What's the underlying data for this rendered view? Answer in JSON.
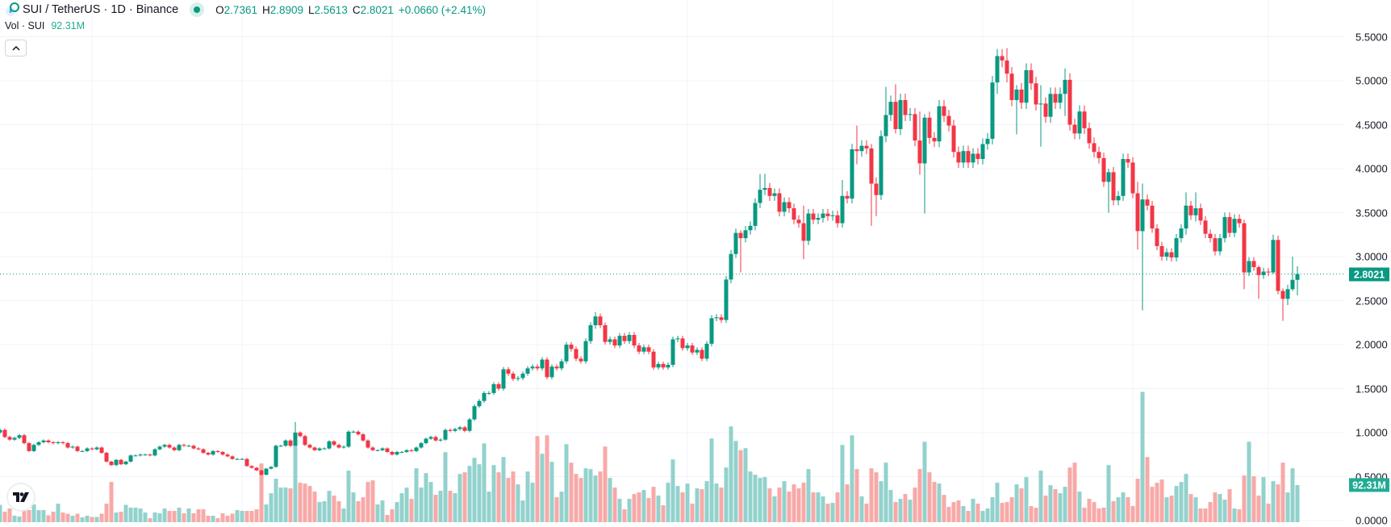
{
  "header": {
    "symbol_title": "SUI / TetherUS · 1D · Binance",
    "market_status": "open",
    "ohlc": [
      {
        "key": "O",
        "value": "2.7361"
      },
      {
        "key": "H",
        "value": "2.8909"
      },
      {
        "key": "L",
        "value": "2.5613"
      },
      {
        "key": "C",
        "value": "2.8021"
      }
    ],
    "change": "+0.0660 (+2.41%)",
    "volume_label": "Vol · SUI",
    "volume_value": "92.31M"
  },
  "icons": {
    "logo": "sui-logo-icon",
    "collapse": "chevron-up-icon",
    "watermark": "tradingview-logo"
  },
  "colors": {
    "up": "#089981",
    "down": "#F23645",
    "volume_up": "#92d2cc",
    "volume_down": "#f7a9a7",
    "grid": "#f0f3fa"
  },
  "chart_data": {
    "type": "candlestick",
    "interval": "1D",
    "grid": true,
    "price_axis": {
      "position": "right",
      "ticks": [
        "5.5000",
        "5.0000",
        "4.5000",
        "4.0000",
        "3.5000",
        "3.0000",
        "2.5000",
        "2.0000",
        "1.5000",
        "1.0000",
        "0.5000",
        "0.0000"
      ],
      "range": [
        0,
        5.5
      ]
    },
    "last_price": "2.8021",
    "last_volume": "92.31M",
    "first_open": 1.0,
    "close": [
      1.03,
      0.95,
      0.92,
      0.94,
      0.97,
      0.88,
      0.79,
      0.86,
      0.89,
      0.91,
      0.89,
      0.88,
      0.89,
      0.88,
      0.83,
      0.84,
      0.79,
      0.79,
      0.82,
      0.81,
      0.83,
      0.77,
      0.67,
      0.63,
      0.69,
      0.64,
      0.67,
      0.74,
      0.74,
      0.75,
      0.75,
      0.74,
      0.81,
      0.84,
      0.86,
      0.83,
      0.8,
      0.86,
      0.85,
      0.85,
      0.82,
      0.81,
      0.77,
      0.75,
      0.79,
      0.78,
      0.75,
      0.73,
      0.7,
      0.7,
      0.7,
      0.62,
      0.6,
      0.57,
      0.52,
      0.59,
      0.61,
      0.85,
      0.85,
      0.91,
      0.85,
      1.0,
      0.96,
      0.86,
      0.83,
      0.8,
      0.82,
      0.82,
      0.9,
      0.86,
      0.83,
      0.84,
      1.01,
      1.01,
      0.98,
      0.91,
      0.83,
      0.8,
      0.8,
      0.82,
      0.78,
      0.75,
      0.78,
      0.78,
      0.8,
      0.79,
      0.83,
      0.88,
      0.93,
      0.95,
      0.91,
      0.92,
      1.03,
      1.02,
      1.04,
      1.06,
      1.02,
      1.15,
      1.3,
      1.36,
      1.45,
      1.45,
      1.55,
      1.5,
      1.72,
      1.67,
      1.61,
      1.62,
      1.67,
      1.73,
      1.75,
      1.73,
      1.83,
      1.63,
      1.75,
      1.73,
      1.81,
      2.0,
      1.95,
      1.84,
      1.81,
      2.04,
      2.22,
      2.32,
      2.22,
      2.03,
      2.06,
      1.99,
      2.1,
      2.04,
      2.11,
      1.99,
      1.92,
      1.97,
      1.92,
      1.74,
      1.78,
      1.74,
      1.77,
      2.06,
      2.07,
      1.96,
      1.99,
      1.91,
      1.94,
      1.84,
      2.01,
      2.3,
      2.31,
      2.28,
      2.74,
      3.03,
      3.27,
      3.21,
      3.3,
      3.35,
      3.61,
      3.76,
      3.78,
      3.69,
      3.72,
      3.51,
      3.62,
      3.55,
      3.42,
      3.38,
      3.18,
      3.49,
      3.42,
      3.44,
      3.49,
      3.46,
      3.47,
      3.38,
      3.69,
      3.66,
      4.22,
      4.2,
      4.26,
      4.23,
      3.83,
      3.7,
      4.37,
      4.61,
      4.76,
      4.45,
      4.78,
      4.61,
      4.62,
      4.32,
      4.06,
      4.58,
      4.35,
      4.31,
      4.71,
      4.6,
      4.49,
      4.19,
      4.07,
      4.2,
      4.07,
      4.17,
      4.11,
      4.28,
      4.34,
      4.98,
      5.28,
      5.23,
      5.08,
      4.78,
      4.9,
      4.75,
      5.12,
      4.97,
      4.73,
      4.74,
      4.59,
      4.85,
      4.75,
      4.85,
      5.01,
      4.5,
      4.4,
      4.65,
      4.46,
      4.29,
      4.19,
      4.12,
      3.85,
      3.96,
      3.64,
      3.69,
      4.11,
      4.07,
      3.72,
      3.29,
      3.65,
      3.58,
      3.32,
      3.12,
      3.0,
      3.05,
      2.99,
      3.21,
      3.32,
      3.58,
      3.47,
      3.55,
      3.41,
      3.26,
      3.21,
      3.06,
      3.21,
      3.45,
      3.27,
      3.43,
      3.38,
      2.82,
      2.95,
      2.88,
      2.79,
      2.83,
      2.82,
      3.19,
      2.61,
      2.52,
      2.63,
      2.7361,
      2.8021
    ],
    "volume_millions": [
      43,
      26,
      34,
      16,
      14,
      29,
      30,
      44,
      30,
      30,
      17,
      26,
      46,
      24,
      21,
      16,
      21,
      12,
      16,
      13,
      13,
      21,
      46,
      100,
      24,
      26,
      43,
      36,
      36,
      34,
      24,
      10,
      24,
      22,
      34,
      28,
      28,
      36,
      22,
      34,
      22,
      32,
      32,
      16,
      16,
      10,
      22,
      16,
      21,
      30,
      28,
      28,
      28,
      32,
      146,
      44,
      72,
      108,
      86,
      86,
      84,
      192,
      98,
      96,
      90,
      76,
      50,
      52,
      78,
      66,
      52,
      34,
      128,
      74,
      52,
      62,
      100,
      104,
      44,
      54,
      18,
      32,
      50,
      72,
      86,
      58,
      134,
      86,
      122,
      100,
      68,
      78,
      174,
      78,
      72,
      120,
      124,
      140,
      160,
      144,
      196,
      76,
      142,
      124,
      162,
      110,
      126,
      94,
      54,
      126,
      98,
      214,
      170,
      216,
      150,
      62,
      76,
      194,
      148,
      120,
      110,
      134,
      132,
      116,
      126,
      188,
      110,
      86,
      58,
      32,
      58,
      70,
      74,
      80,
      60,
      88,
      66,
      42,
      98,
      156,
      90,
      74,
      96,
      46,
      84,
      82,
      102,
      208,
      96,
      86,
      136,
      238,
      202,
      179,
      184,
      126,
      118,
      110,
      112,
      84,
      64,
      86,
      102,
      76,
      94,
      84,
      98,
      132,
      74,
      74,
      64,
      46,
      48,
      74,
      192,
      94,
      216,
      132,
      64,
      46,
      134,
      124,
      102,
      148,
      80,
      50,
      58,
      70,
      56,
      86,
      132,
      200,
      124,
      100,
      96,
      68,
      38,
      50,
      54,
      40,
      28,
      58,
      46,
      28,
      34,
      62,
      98,
      48,
      50,
      62,
      94,
      84,
      112,
      40,
      36,
      128,
      66,
      92,
      82,
      72,
      88,
      136,
      148,
      76,
      36,
      58,
      50,
      34,
      36,
      142,
      52,
      62,
      74,
      62,
      40,
      108,
      324,
      162,
      88,
      98,
      106,
      62,
      66,
      90,
      100,
      120,
      70,
      62,
      34,
      34,
      50,
      74,
      70,
      56,
      82,
      34,
      32,
      116,
      200,
      114,
      66,
      112,
      46,
      102,
      94,
      148,
      74,
      134,
      92.31
    ],
    "notable_wicks": {
      "61": [
        1.12,
        0.85
      ],
      "123": [
        2.37,
        2.18
      ],
      "153": [
        3.3,
        2.82
      ],
      "157": [
        3.94,
        3.55
      ],
      "158": [
        3.94,
        3.7
      ],
      "166": [
        3.58,
        2.97
      ],
      "174": [
        3.87,
        3.33
      ],
      "177": [
        4.49,
        4.05
      ],
      "180": [
        4.28,
        3.35
      ],
      "181": [
        3.9,
        3.46
      ],
      "183": [
        4.93,
        4.3
      ],
      "185": [
        4.96,
        4.4
      ],
      "190": [
        4.65,
        3.93
      ],
      "191": [
        4.62,
        3.49
      ],
      "206": [
        5.36,
        4.85
      ],
      "208": [
        5.37,
        4.98
      ],
      "210": [
        4.95,
        4.39
      ],
      "215": [
        4.95,
        4.25
      ],
      "220": [
        5.14,
        4.6
      ],
      "229": [
        4.0,
        3.5
      ],
      "235": [
        3.85,
        3.08
      ],
      "236": [
        3.83,
        2.39
      ],
      "245": [
        3.73,
        3.25
      ],
      "247": [
        3.73,
        3.4
      ],
      "257": [
        3.42,
        2.63
      ],
      "260": [
        2.9,
        2.52
      ],
      "263": [
        3.25,
        2.8
      ],
      "265": [
        2.64,
        2.27
      ],
      "266": [
        2.68,
        2.45
      ],
      "267": [
        3.0,
        2.61
      ],
      "268": [
        2.8909,
        2.5613
      ]
    }
  }
}
